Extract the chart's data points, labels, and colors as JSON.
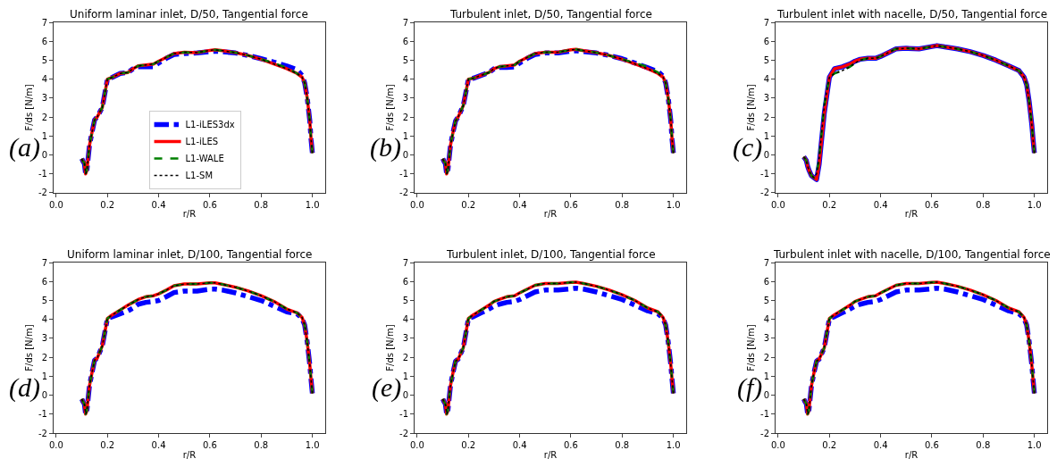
{
  "chart_data": [
    {
      "type": "line",
      "title": "Uniform laminar inlet, D/50, Tangential force",
      "xlabel": "r/R",
      "ylabel": "F/ds [N/m]",
      "annotations": [
        "(a)"
      ],
      "legend": "bottom",
      "xlim": [
        -0.01,
        1.05
      ],
      "ylim": [
        -2,
        7
      ],
      "xticks": [
        {
          "value": 0,
          "label": "0.0"
        },
        {
          "value": 0.2,
          "label": "0.2"
        },
        {
          "value": 0.4,
          "label": "0.4"
        },
        {
          "value": 0.6,
          "label": "0.6"
        },
        {
          "value": 0.8,
          "label": "0.8"
        },
        {
          "value": 1,
          "label": "1.0"
        }
      ],
      "yticks": [
        -2,
        -1,
        0,
        1,
        2,
        3,
        4,
        5,
        6,
        7
      ],
      "x": [
        0.1,
        0.105,
        0.11,
        0.115,
        0.12,
        0.13,
        0.14,
        0.15,
        0.16,
        0.18,
        0.2,
        0.22,
        0.25,
        0.28,
        0.3,
        0.32,
        0.35,
        0.38,
        0.4,
        0.43,
        0.46,
        0.5,
        0.55,
        0.6,
        0.62,
        0.65,
        0.7,
        0.75,
        0.8,
        0.85,
        0.9,
        0.94,
        0.96,
        0.97,
        0.98,
        0.99,
        0.995,
        1.0
      ],
      "series": [
        {
          "name": "L1-iLES",
          "color": "#ff0000",
          "line_style": "solid",
          "values": [
            -0.2,
            -0.35,
            -0.4,
            -1.0,
            -0.8,
            0.5,
            1.2,
            1.85,
            2.0,
            2.5,
            4.0,
            4.1,
            4.3,
            4.35,
            4.55,
            4.7,
            4.75,
            4.8,
            4.95,
            5.15,
            5.35,
            5.42,
            5.4,
            5.52,
            5.55,
            5.5,
            5.4,
            5.25,
            5.05,
            4.8,
            4.55,
            4.3,
            4.1,
            3.8,
            3.0,
            1.8,
            0.8,
            0.1
          ]
        },
        {
          "name": "L1-WALE",
          "color": "#008000",
          "line_style": "dashed",
          "values": [
            -0.2,
            -0.35,
            -0.4,
            -1.0,
            -0.8,
            0.5,
            1.2,
            1.85,
            2.0,
            2.5,
            4.0,
            4.1,
            4.3,
            4.35,
            4.55,
            4.7,
            4.75,
            4.8,
            4.95,
            5.15,
            5.35,
            5.42,
            5.4,
            5.52,
            5.55,
            5.5,
            5.4,
            5.25,
            5.05,
            4.85,
            4.6,
            4.3,
            4.1,
            3.8,
            3.0,
            1.8,
            0.8,
            0.1
          ]
        },
        {
          "name": "L1-SM",
          "color": "#000000",
          "line_style": "dotted",
          "values": [
            -0.2,
            -0.35,
            -0.4,
            -1.0,
            -0.8,
            0.5,
            1.2,
            1.85,
            2.0,
            2.5,
            4.0,
            4.1,
            4.3,
            4.35,
            4.55,
            4.7,
            4.75,
            4.8,
            4.95,
            5.15,
            5.35,
            5.42,
            5.4,
            5.52,
            5.55,
            5.5,
            5.4,
            5.25,
            5.05,
            4.8,
            4.55,
            4.3,
            4.1,
            3.8,
            3.0,
            1.8,
            0.8,
            0.1
          ]
        },
        {
          "name": "L1-iLES3dx",
          "color": "#0000ff",
          "line_style": "dashdot",
          "values": [
            -0.2,
            -0.35,
            -0.45,
            -1.0,
            -0.8,
            0.5,
            1.2,
            1.85,
            2.0,
            2.5,
            4.0,
            4.1,
            4.3,
            4.35,
            4.55,
            4.65,
            4.65,
            4.65,
            4.85,
            5.1,
            5.3,
            5.35,
            5.38,
            5.45,
            5.47,
            5.45,
            5.38,
            5.25,
            5.08,
            4.9,
            4.7,
            4.5,
            4.2,
            3.8,
            3.0,
            1.8,
            0.8,
            0.1
          ]
        }
      ]
    },
    {
      "type": "line",
      "title": "Turbulent inlet, D/50, Tangential force",
      "xlabel": "r/R",
      "ylabel": "F/ds [N/m]",
      "annotations": [
        "(b)"
      ],
      "xlim": [
        -0.01,
        1.05
      ],
      "ylim": [
        -2,
        7
      ],
      "xticks": [
        {
          "value": 0,
          "label": "0.0"
        },
        {
          "value": 0.2,
          "label": "0.2"
        },
        {
          "value": 0.4,
          "label": "0.4"
        },
        {
          "value": 0.6,
          "label": "0.6"
        },
        {
          "value": 0.8,
          "label": "0.8"
        },
        {
          "value": 1,
          "label": "1.0"
        }
      ],
      "yticks": [
        -2,
        -1,
        0,
        1,
        2,
        3,
        4,
        5,
        6,
        7
      ],
      "x": [
        0.1,
        0.105,
        0.11,
        0.115,
        0.12,
        0.13,
        0.14,
        0.15,
        0.16,
        0.18,
        0.2,
        0.22,
        0.25,
        0.28,
        0.3,
        0.32,
        0.35,
        0.38,
        0.4,
        0.43,
        0.46,
        0.5,
        0.55,
        0.6,
        0.62,
        0.65,
        0.7,
        0.75,
        0.8,
        0.85,
        0.9,
        0.94,
        0.96,
        0.97,
        0.98,
        0.99,
        0.995,
        1.0
      ],
      "series": [
        {
          "color": "#ff0000",
          "line_style": "solid",
          "values": [
            -0.2,
            -0.35,
            -0.4,
            -1.0,
            -0.8,
            0.5,
            1.2,
            1.8,
            2.0,
            2.6,
            4.0,
            4.05,
            4.2,
            4.35,
            4.55,
            4.65,
            4.7,
            4.75,
            4.95,
            5.15,
            5.35,
            5.42,
            5.42,
            5.55,
            5.57,
            5.5,
            5.4,
            5.25,
            5.05,
            4.8,
            4.55,
            4.3,
            4.1,
            3.8,
            3.0,
            1.8,
            0.8,
            0.1
          ]
        },
        {
          "color": "#008000",
          "line_style": "dashed",
          "values": [
            -0.2,
            -0.35,
            -0.4,
            -1.0,
            -0.8,
            0.5,
            1.2,
            1.8,
            2.0,
            2.6,
            4.0,
            4.05,
            4.2,
            4.35,
            4.55,
            4.65,
            4.7,
            4.75,
            4.95,
            5.15,
            5.35,
            5.42,
            5.42,
            5.55,
            5.57,
            5.5,
            5.4,
            5.25,
            5.05,
            4.85,
            4.65,
            4.35,
            4.1,
            3.8,
            3.0,
            1.8,
            0.8,
            0.1
          ]
        },
        {
          "color": "#000000",
          "line_style": "dotted",
          "values": [
            -0.2,
            -0.35,
            -0.4,
            -1.0,
            -0.8,
            0.5,
            1.2,
            1.8,
            2.0,
            2.6,
            4.0,
            4.05,
            4.2,
            4.35,
            4.55,
            4.65,
            4.7,
            4.75,
            4.95,
            5.15,
            5.35,
            5.42,
            5.42,
            5.55,
            5.57,
            5.5,
            5.4,
            5.25,
            5.05,
            4.8,
            4.55,
            4.3,
            4.1,
            3.8,
            3.0,
            1.8,
            0.8,
            0.1
          ]
        },
        {
          "color": "#0000ff",
          "line_style": "dashdot",
          "values": [
            -0.2,
            -0.35,
            -0.45,
            -1.0,
            -0.8,
            0.5,
            1.2,
            1.8,
            2.0,
            2.6,
            4.0,
            4.05,
            4.2,
            4.35,
            4.55,
            4.62,
            4.62,
            4.65,
            4.85,
            5.1,
            5.3,
            5.38,
            5.38,
            5.48,
            5.5,
            5.45,
            5.38,
            5.25,
            5.08,
            4.85,
            4.6,
            4.4,
            4.15,
            3.8,
            3.0,
            1.8,
            0.8,
            0.1
          ]
        }
      ]
    },
    {
      "type": "line",
      "title": "Turbulent inlet with nacelle, D/50, Tangential force",
      "xlabel": "r/R",
      "ylabel": "F/ds [N/m]",
      "annotations": [
        "(c)"
      ],
      "xlim": [
        -0.01,
        1.05
      ],
      "ylim": [
        -2,
        7
      ],
      "xticks": [
        {
          "value": 0,
          "label": "0.0"
        },
        {
          "value": 0.2,
          "label": "0.2"
        },
        {
          "value": 0.4,
          "label": "0.4"
        },
        {
          "value": 0.6,
          "label": "0.6"
        },
        {
          "value": 0.8,
          "label": "0.8"
        },
        {
          "value": 1,
          "label": "1.0"
        }
      ],
      "yticks": [
        -2,
        -1,
        0,
        1,
        2,
        3,
        4,
        5,
        6,
        7
      ],
      "x": [
        0.1,
        0.105,
        0.11,
        0.115,
        0.12,
        0.13,
        0.14,
        0.15,
        0.16,
        0.18,
        0.2,
        0.22,
        0.25,
        0.28,
        0.3,
        0.32,
        0.35,
        0.38,
        0.4,
        0.43,
        0.46,
        0.5,
        0.55,
        0.6,
        0.62,
        0.65,
        0.7,
        0.75,
        0.8,
        0.85,
        0.9,
        0.94,
        0.96,
        0.97,
        0.98,
        0.99,
        0.995,
        1.0
      ],
      "series": [
        {
          "color": "#ff0000",
          "line_style": "solid",
          "values": [
            -0.1,
            -0.2,
            -0.3,
            -0.6,
            -0.8,
            -1.1,
            -1.2,
            -1.3,
            -0.5,
            2.2,
            4.1,
            4.55,
            4.65,
            4.8,
            4.95,
            5.05,
            5.1,
            5.1,
            5.2,
            5.4,
            5.6,
            5.63,
            5.6,
            5.72,
            5.77,
            5.7,
            5.6,
            5.45,
            5.25,
            5.0,
            4.7,
            4.45,
            4.1,
            3.7,
            2.8,
            1.6,
            0.8,
            0.1
          ]
        },
        {
          "color": "#008000",
          "line_style": "dashed",
          "values": [
            -0.1,
            -0.2,
            -0.3,
            -0.6,
            -0.8,
            -1.1,
            -1.2,
            -1.0,
            -0.2,
            2.6,
            4.1,
            4.3,
            4.45,
            4.65,
            4.85,
            5.0,
            5.1,
            5.1,
            5.2,
            5.4,
            5.6,
            5.63,
            5.6,
            5.72,
            5.77,
            5.7,
            5.6,
            5.45,
            5.25,
            5.0,
            4.7,
            4.45,
            4.1,
            3.7,
            2.8,
            1.6,
            0.8,
            0.1
          ]
        },
        {
          "color": "#000000",
          "line_style": "dotted",
          "values": [
            -0.1,
            -0.2,
            -0.3,
            -0.6,
            -0.8,
            -1.1,
            -1.2,
            -1.0,
            -0.2,
            2.6,
            4.1,
            4.3,
            4.45,
            4.65,
            4.85,
            5.0,
            5.1,
            5.1,
            5.2,
            5.4,
            5.6,
            5.63,
            5.6,
            5.72,
            5.77,
            5.7,
            5.6,
            5.45,
            5.25,
            5.0,
            4.7,
            4.45,
            4.1,
            3.7,
            2.8,
            1.6,
            0.8,
            0.1
          ]
        },
        {
          "color": "#0000ff",
          "line_style": "solid",
          "values": [
            -0.1,
            -0.2,
            -0.3,
            -0.6,
            -0.8,
            -1.1,
            -1.2,
            -1.3,
            -0.5,
            2.2,
            4.1,
            4.55,
            4.65,
            4.8,
            4.95,
            5.05,
            5.1,
            5.1,
            5.2,
            5.4,
            5.6,
            5.63,
            5.6,
            5.72,
            5.77,
            5.7,
            5.6,
            5.45,
            5.25,
            5.0,
            4.7,
            4.45,
            4.1,
            3.7,
            2.8,
            1.6,
            0.8,
            0.1
          ]
        }
      ]
    },
    {
      "type": "line",
      "title": "Uniform laminar inlet, D/100, Tangential force",
      "xlabel": "r/R",
      "ylabel": "F/ds [N/m]",
      "annotations": [
        "(d)"
      ],
      "xlim": [
        -0.01,
        1.05
      ],
      "ylim": [
        -2,
        7
      ],
      "xticks": [
        {
          "value": 0,
          "label": "0.0"
        },
        {
          "value": 0.2,
          "label": "0.2"
        },
        {
          "value": 0.4,
          "label": "0.4"
        },
        {
          "value": 0.6,
          "label": "0.6"
        },
        {
          "value": 0.8,
          "label": "0.8"
        },
        {
          "value": 1,
          "label": "1.0"
        }
      ],
      "yticks": [
        -2,
        -1,
        0,
        1,
        2,
        3,
        4,
        5,
        6,
        7
      ],
      "x": [
        0.1,
        0.105,
        0.11,
        0.115,
        0.12,
        0.13,
        0.14,
        0.15,
        0.16,
        0.18,
        0.2,
        0.22,
        0.25,
        0.28,
        0.3,
        0.32,
        0.35,
        0.38,
        0.4,
        0.43,
        0.46,
        0.5,
        0.55,
        0.6,
        0.62,
        0.65,
        0.7,
        0.75,
        0.8,
        0.85,
        0.9,
        0.94,
        0.96,
        0.97,
        0.98,
        0.99,
        0.995,
        1.0
      ],
      "series": [
        {
          "color": "#ff0000",
          "line_style": "solid",
          "values": [
            -0.2,
            -0.35,
            -0.45,
            -1.0,
            -0.8,
            0.5,
            1.2,
            1.85,
            1.95,
            2.6,
            4.05,
            4.25,
            4.5,
            4.75,
            4.9,
            5.05,
            5.2,
            5.25,
            5.35,
            5.55,
            5.78,
            5.87,
            5.87,
            5.93,
            5.93,
            5.85,
            5.7,
            5.5,
            5.25,
            4.95,
            4.55,
            4.35,
            4.1,
            3.7,
            2.8,
            1.6,
            0.8,
            0.1
          ]
        },
        {
          "color": "#008000",
          "line_style": "dashed",
          "values": [
            -0.2,
            -0.35,
            -0.45,
            -1.0,
            -0.8,
            0.5,
            1.2,
            1.85,
            1.95,
            2.6,
            4.05,
            4.25,
            4.5,
            4.75,
            4.9,
            5.05,
            5.2,
            5.25,
            5.35,
            5.55,
            5.78,
            5.87,
            5.87,
            5.93,
            5.93,
            5.85,
            5.7,
            5.5,
            5.25,
            4.95,
            4.55,
            4.35,
            4.1,
            3.7,
            2.8,
            1.6,
            0.8,
            0.1
          ]
        },
        {
          "color": "#000000",
          "line_style": "dotted",
          "values": [
            -0.2,
            -0.35,
            -0.45,
            -1.0,
            -0.8,
            0.5,
            1.2,
            1.85,
            1.95,
            2.6,
            4.05,
            4.25,
            4.5,
            4.75,
            4.9,
            5.05,
            5.2,
            5.25,
            5.35,
            5.55,
            5.78,
            5.87,
            5.87,
            5.93,
            5.93,
            5.85,
            5.7,
            5.5,
            5.25,
            4.95,
            4.55,
            4.35,
            4.1,
            3.7,
            2.8,
            1.6,
            0.8,
            0.1
          ]
        },
        {
          "color": "#0000ff",
          "line_style": "dashdot",
          "values": [
            -0.2,
            -0.35,
            -0.45,
            -1.0,
            -0.8,
            0.5,
            1.2,
            1.85,
            1.95,
            2.6,
            4.05,
            4.15,
            4.3,
            4.45,
            4.6,
            4.8,
            4.9,
            4.95,
            5.0,
            5.2,
            5.42,
            5.5,
            5.5,
            5.6,
            5.6,
            5.55,
            5.4,
            5.2,
            5.0,
            4.7,
            4.4,
            4.3,
            4.05,
            3.7,
            2.8,
            1.6,
            0.8,
            0.1
          ]
        }
      ]
    },
    {
      "type": "line",
      "title": "Turbulent inlet, D/100, Tangential force",
      "xlabel": "r/R",
      "ylabel": "F/ds [N/m]",
      "annotations": [
        "(e)"
      ],
      "xlim": [
        -0.01,
        1.05
      ],
      "ylim": [
        -2,
        7
      ],
      "xticks": [
        {
          "value": 0,
          "label": "0.0"
        },
        {
          "value": 0.2,
          "label": "0.2"
        },
        {
          "value": 0.4,
          "label": "0.4"
        },
        {
          "value": 0.6,
          "label": "0.6"
        },
        {
          "value": 0.8,
          "label": "0.8"
        },
        {
          "value": 1,
          "label": "1.0"
        }
      ],
      "yticks": [
        -2,
        -1,
        0,
        1,
        2,
        3,
        4,
        5,
        6,
        7
      ],
      "x": [
        0.1,
        0.105,
        0.11,
        0.115,
        0.12,
        0.13,
        0.14,
        0.15,
        0.16,
        0.18,
        0.2,
        0.22,
        0.25,
        0.28,
        0.3,
        0.32,
        0.35,
        0.38,
        0.4,
        0.43,
        0.46,
        0.5,
        0.55,
        0.6,
        0.62,
        0.65,
        0.7,
        0.75,
        0.8,
        0.85,
        0.9,
        0.94,
        0.96,
        0.97,
        0.98,
        0.99,
        0.995,
        1.0
      ],
      "series": [
        {
          "color": "#ff0000",
          "line_style": "solid",
          "values": [
            -0.2,
            -0.35,
            -0.45,
            -1.0,
            -0.8,
            0.5,
            1.2,
            1.8,
            1.9,
            2.5,
            4.05,
            4.25,
            4.5,
            4.75,
            4.95,
            5.05,
            5.2,
            5.25,
            5.4,
            5.6,
            5.8,
            5.9,
            5.9,
            5.95,
            5.97,
            5.9,
            5.75,
            5.55,
            5.3,
            5.0,
            4.6,
            4.4,
            4.1,
            3.7,
            2.8,
            1.6,
            0.8,
            0.1
          ]
        },
        {
          "color": "#008000",
          "line_style": "dashed",
          "values": [
            -0.2,
            -0.35,
            -0.45,
            -1.0,
            -0.8,
            0.5,
            1.2,
            1.8,
            1.9,
            2.5,
            4.05,
            4.25,
            4.5,
            4.75,
            4.95,
            5.05,
            5.2,
            5.25,
            5.4,
            5.6,
            5.8,
            5.9,
            5.9,
            5.95,
            5.97,
            5.9,
            5.75,
            5.55,
            5.3,
            5.0,
            4.6,
            4.4,
            4.1,
            3.7,
            2.8,
            1.6,
            0.8,
            0.1
          ]
        },
        {
          "color": "#000000",
          "line_style": "dotted",
          "values": [
            -0.2,
            -0.35,
            -0.45,
            -1.0,
            -0.8,
            0.5,
            1.2,
            1.8,
            1.9,
            2.5,
            4.05,
            4.25,
            4.5,
            4.75,
            4.95,
            5.05,
            5.2,
            5.25,
            5.4,
            5.6,
            5.8,
            5.9,
            5.9,
            5.95,
            5.97,
            5.9,
            5.75,
            5.55,
            5.3,
            5.0,
            4.6,
            4.4,
            4.1,
            3.7,
            2.8,
            1.6,
            0.8,
            0.1
          ]
        },
        {
          "color": "#0000ff",
          "line_style": "dashdot",
          "values": [
            -0.2,
            -0.35,
            -0.45,
            -1.0,
            -0.8,
            0.5,
            1.2,
            1.8,
            1.9,
            2.5,
            4.05,
            4.15,
            4.35,
            4.55,
            4.7,
            4.8,
            4.9,
            4.95,
            5.05,
            5.25,
            5.45,
            5.55,
            5.55,
            5.62,
            5.65,
            5.6,
            5.45,
            5.25,
            5.05,
            4.75,
            4.45,
            4.3,
            4.05,
            3.7,
            2.8,
            1.6,
            0.8,
            0.1
          ]
        }
      ]
    },
    {
      "type": "line",
      "title": "Turbulent inlet with nacelle, D/100, Tangential force",
      "xlabel": "r/R",
      "ylabel": "F/ds [N/m]",
      "annotations": [
        "(f)"
      ],
      "xlim": [
        -0.01,
        1.05
      ],
      "ylim": [
        -2,
        7
      ],
      "xticks": [
        {
          "value": 0,
          "label": "0.0"
        },
        {
          "value": 0.2,
          "label": "0.2"
        },
        {
          "value": 0.4,
          "label": "0.4"
        },
        {
          "value": 0.6,
          "label": "0.6"
        },
        {
          "value": 0.8,
          "label": "0.8"
        },
        {
          "value": 1,
          "label": "1.0"
        }
      ],
      "yticks": [
        -2,
        -1,
        0,
        1,
        2,
        3,
        4,
        5,
        6,
        7
      ],
      "x": [
        0.1,
        0.105,
        0.11,
        0.115,
        0.12,
        0.13,
        0.14,
        0.15,
        0.16,
        0.18,
        0.2,
        0.22,
        0.25,
        0.28,
        0.3,
        0.32,
        0.35,
        0.38,
        0.4,
        0.43,
        0.46,
        0.5,
        0.55,
        0.6,
        0.62,
        0.65,
        0.7,
        0.75,
        0.8,
        0.85,
        0.9,
        0.94,
        0.96,
        0.97,
        0.98,
        0.99,
        0.995,
        1.0
      ],
      "series": [
        {
          "color": "#ff0000",
          "line_style": "solid",
          "values": [
            -0.2,
            -0.35,
            -0.45,
            -1.0,
            -0.8,
            0.5,
            1.2,
            1.8,
            1.9,
            2.5,
            4.05,
            4.25,
            4.5,
            4.75,
            4.95,
            5.05,
            5.2,
            5.25,
            5.4,
            5.6,
            5.8,
            5.9,
            5.9,
            5.95,
            5.97,
            5.9,
            5.75,
            5.55,
            5.3,
            5.0,
            4.6,
            4.4,
            4.1,
            3.7,
            2.8,
            1.6,
            0.8,
            0.1
          ]
        },
        {
          "color": "#008000",
          "line_style": "dashed",
          "values": [
            -0.2,
            -0.35,
            -0.45,
            -1.0,
            -0.8,
            0.5,
            1.2,
            1.8,
            1.9,
            2.5,
            4.05,
            4.25,
            4.5,
            4.75,
            4.95,
            5.05,
            5.2,
            5.25,
            5.4,
            5.6,
            5.8,
            5.9,
            5.9,
            5.95,
            5.97,
            5.9,
            5.75,
            5.55,
            5.3,
            5.0,
            4.6,
            4.4,
            4.1,
            3.7,
            2.8,
            1.6,
            0.8,
            0.1
          ]
        },
        {
          "color": "#000000",
          "line_style": "dotted",
          "values": [
            -0.2,
            -0.35,
            -0.45,
            -1.0,
            -0.8,
            0.5,
            1.2,
            1.8,
            1.9,
            2.5,
            4.05,
            4.25,
            4.5,
            4.75,
            4.95,
            5.05,
            5.2,
            5.25,
            5.4,
            5.6,
            5.8,
            5.9,
            5.9,
            5.95,
            5.97,
            5.9,
            5.75,
            5.55,
            5.3,
            5.0,
            4.6,
            4.4,
            4.1,
            3.7,
            2.8,
            1.6,
            0.8,
            0.1
          ]
        },
        {
          "color": "#0000ff",
          "line_style": "dashdot",
          "values": [
            -0.2,
            -0.35,
            -0.45,
            -1.0,
            -0.8,
            0.5,
            1.2,
            1.8,
            1.9,
            2.5,
            4.05,
            4.15,
            4.35,
            4.55,
            4.7,
            4.8,
            4.9,
            4.95,
            5.05,
            5.25,
            5.45,
            5.55,
            5.55,
            5.62,
            5.65,
            5.6,
            5.45,
            5.25,
            5.05,
            4.75,
            4.45,
            4.3,
            4.05,
            3.7,
            2.8,
            1.6,
            0.8,
            0.1
          ]
        }
      ]
    }
  ]
}
